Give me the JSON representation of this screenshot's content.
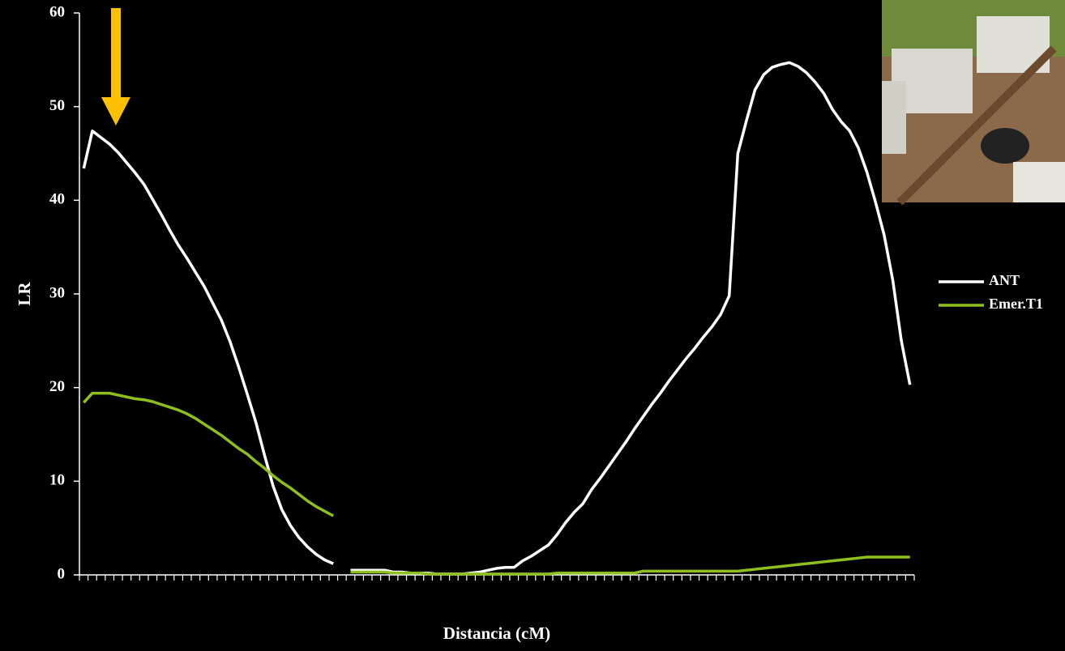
{
  "chart_data": {
    "type": "line",
    "xlabel": "Distancia (cM)",
    "ylabel": "LR",
    "categories": [
      null,
      null,
      null,
      null,
      null,
      null,
      null,
      null,
      null,
      null,
      null,
      null,
      null,
      null,
      null,
      null,
      null,
      null,
      null,
      null,
      null,
      null,
      null,
      null,
      null,
      null,
      null,
      null,
      null,
      null,
      null,
      null,
      null,
      null,
      null,
      null,
      null,
      null,
      null,
      null,
      null,
      null,
      null,
      null,
      null,
      null,
      null,
      null,
      null,
      null,
      null,
      null,
      null,
      null,
      null,
      null,
      null,
      null,
      null,
      null,
      null,
      null,
      null,
      null,
      null,
      null,
      null,
      null,
      null,
      null,
      null,
      null,
      null,
      null,
      null,
      null,
      null,
      null,
      null,
      null,
      null,
      null,
      null,
      null,
      null,
      null,
      null,
      null,
      null,
      null,
      null,
      null,
      null,
      null,
      null,
      null,
      null
    ],
    "series": [
      {
        "name": "ANT",
        "color": "#ffffff",
        "values": [
          43.4,
          47.4,
          46.7,
          46.0,
          45.1,
          44.0,
          42.9,
          41.7,
          40.1,
          38.5,
          36.8,
          35.2,
          33.8,
          32.3,
          30.8,
          29.0,
          27.2,
          24.9,
          22.2,
          19.3,
          16.3,
          12.8,
          9.5,
          7.0,
          5.3,
          4.0,
          3.0,
          2.2,
          1.6,
          1.2,
          null,
          0.5,
          0.5,
          0.5,
          0.5,
          0.5,
          0.3,
          0.3,
          0.2,
          0.2,
          0.2,
          0.1,
          0.1,
          0.1,
          0.1,
          0.2,
          0.3,
          0.5,
          0.7,
          0.8,
          0.8,
          1.5,
          2.0,
          2.6,
          3.2,
          4.3,
          5.6,
          6.7,
          7.6,
          9.1,
          10.3,
          11.6,
          12.9,
          14.2,
          15.6,
          16.9,
          18.2,
          19.4,
          20.7,
          21.9,
          23.1,
          24.2,
          25.4,
          26.5,
          27.8,
          29.8,
          45.0,
          48.5,
          51.8,
          53.4,
          54.2,
          54.5,
          54.7,
          54.3,
          53.6,
          52.6,
          51.4,
          49.7,
          48.4,
          47.4,
          45.6,
          43.0,
          39.8,
          36.3,
          31.5,
          25.0,
          20.3
        ]
      },
      {
        "name": "Emer.T1",
        "color": "#8ebf1e",
        "values": [
          18.4,
          19.4,
          19.4,
          19.4,
          19.2,
          19.0,
          18.8,
          18.7,
          18.5,
          18.2,
          17.9,
          17.6,
          17.2,
          16.7,
          16.1,
          15.5,
          14.9,
          14.2,
          13.5,
          12.9,
          12.1,
          11.4,
          10.6,
          9.9,
          9.3,
          8.6,
          7.9,
          7.3,
          6.8,
          6.3,
          null,
          0.3,
          0.3,
          0.3,
          0.3,
          0.3,
          0.2,
          0.2,
          0.2,
          0.2,
          0.1,
          0.1,
          0.1,
          0.1,
          0.1,
          0.1,
          0.1,
          0.1,
          0.1,
          0.1,
          0.1,
          0.1,
          0.1,
          0.1,
          0.1,
          0.2,
          0.2,
          0.2,
          0.2,
          0.2,
          0.2,
          0.2,
          0.2,
          0.2,
          0.2,
          0.4,
          0.4,
          0.4,
          0.4,
          0.4,
          0.4,
          0.4,
          0.4,
          0.4,
          0.4,
          0.4,
          0.4,
          0.5,
          0.6,
          0.7,
          0.8,
          0.9,
          1.0,
          1.1,
          1.2,
          1.3,
          1.4,
          1.5,
          1.6,
          1.7,
          1.8,
          1.9,
          1.9,
          1.9,
          1.9,
          1.9,
          1.9
        ]
      }
    ],
    "ylim": [
      0,
      60
    ],
    "yticks": [
      0,
      10,
      20,
      30,
      40,
      50,
      60
    ],
    "grid": false,
    "legend": "right"
  }
}
